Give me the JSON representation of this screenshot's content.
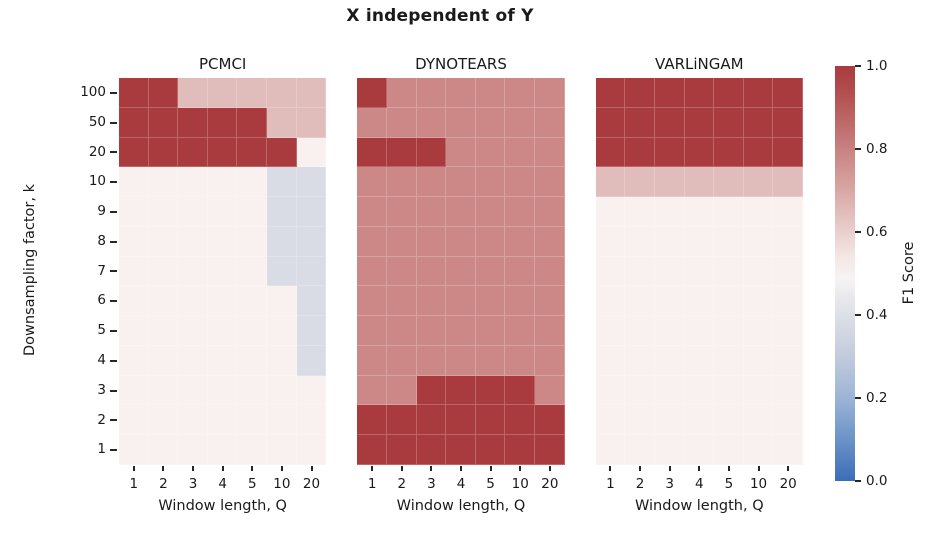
{
  "figure": {
    "title": "X independent of Y"
  },
  "y_axis": {
    "label": "Downsampling factor, k",
    "ticks": [
      "100",
      "50",
      "20",
      "10",
      "9",
      "8",
      "7",
      "6",
      "5",
      "4",
      "3",
      "2",
      "1"
    ]
  },
  "x_axis": {
    "label": "Window length, Q",
    "ticks": [
      "1",
      "2",
      "3",
      "4",
      "5",
      "10",
      "20"
    ]
  },
  "colorbar": {
    "label": "F1 Score",
    "ticks": [
      "1.0",
      "0.8",
      "0.6",
      "0.4",
      "0.2",
      "0.0"
    ],
    "top_color": "#a93b3e",
    "bottom_color": "#3b6db8"
  },
  "palette": {
    "high": "#a93b3e",
    "mid": "#cc8887",
    "pink": "#e0bcba",
    "near_white": "#f9f1f0",
    "blue": "#d9dce4"
  },
  "chart_data": [
    {
      "type": "heatmap",
      "title": "PCMCI",
      "x": [
        1,
        2,
        3,
        4,
        5,
        10,
        20
      ],
      "y": [
        100,
        50,
        20,
        10,
        9,
        8,
        7,
        6,
        5,
        4,
        3,
        2,
        1
      ],
      "xlabel": "Window length, Q",
      "ylabel": "Downsampling factor, k",
      "value_label": "F1 Score",
      "value_range": [
        0.0,
        1.0
      ],
      "values_f1": [
        [
          0.97,
          0.97,
          0.66,
          0.66,
          0.66,
          0.66,
          0.66
        ],
        [
          0.97,
          0.97,
          0.97,
          0.97,
          0.97,
          0.66,
          0.66
        ],
        [
          0.97,
          0.97,
          0.97,
          0.97,
          0.97,
          0.97,
          0.55
        ],
        [
          0.55,
          0.55,
          0.55,
          0.55,
          0.55,
          0.45,
          0.45
        ],
        [
          0.55,
          0.55,
          0.55,
          0.55,
          0.55,
          0.45,
          0.45
        ],
        [
          0.55,
          0.55,
          0.55,
          0.55,
          0.55,
          0.45,
          0.45
        ],
        [
          0.55,
          0.55,
          0.55,
          0.55,
          0.55,
          0.45,
          0.45
        ],
        [
          0.55,
          0.55,
          0.55,
          0.55,
          0.55,
          0.55,
          0.45
        ],
        [
          0.55,
          0.55,
          0.55,
          0.55,
          0.55,
          0.55,
          0.45
        ],
        [
          0.55,
          0.55,
          0.55,
          0.55,
          0.55,
          0.55,
          0.45
        ],
        [
          0.55,
          0.55,
          0.55,
          0.55,
          0.55,
          0.55,
          0.55
        ],
        [
          0.55,
          0.55,
          0.55,
          0.55,
          0.55,
          0.55,
          0.55
        ],
        [
          0.55,
          0.55,
          0.55,
          0.55,
          0.55,
          0.55,
          0.55
        ]
      ]
    },
    {
      "type": "heatmap",
      "title": "DYNOTEARS",
      "x": [
        1,
        2,
        3,
        4,
        5,
        10,
        20
      ],
      "y": [
        100,
        50,
        20,
        10,
        9,
        8,
        7,
        6,
        5,
        4,
        3,
        2,
        1
      ],
      "xlabel": "Window length, Q",
      "ylabel": "Downsampling factor, k",
      "value_label": "F1 Score",
      "value_range": [
        0.0,
        1.0
      ],
      "values_f1": [
        [
          0.97,
          0.78,
          0.78,
          0.78,
          0.78,
          0.78,
          0.78
        ],
        [
          0.78,
          0.78,
          0.78,
          0.78,
          0.78,
          0.78,
          0.78
        ],
        [
          0.97,
          0.97,
          0.97,
          0.78,
          0.78,
          0.78,
          0.78
        ],
        [
          0.78,
          0.78,
          0.78,
          0.78,
          0.78,
          0.78,
          0.78
        ],
        [
          0.78,
          0.78,
          0.78,
          0.78,
          0.78,
          0.78,
          0.78
        ],
        [
          0.78,
          0.78,
          0.78,
          0.78,
          0.78,
          0.78,
          0.78
        ],
        [
          0.78,
          0.78,
          0.78,
          0.78,
          0.78,
          0.78,
          0.78
        ],
        [
          0.78,
          0.78,
          0.78,
          0.78,
          0.78,
          0.78,
          0.78
        ],
        [
          0.78,
          0.78,
          0.78,
          0.78,
          0.78,
          0.78,
          0.78
        ],
        [
          0.78,
          0.78,
          0.78,
          0.78,
          0.78,
          0.78,
          0.78
        ],
        [
          0.78,
          0.78,
          0.97,
          0.97,
          0.97,
          0.97,
          0.78
        ],
        [
          0.97,
          0.97,
          0.97,
          0.97,
          0.97,
          0.97,
          0.97
        ],
        [
          0.97,
          0.97,
          0.97,
          0.97,
          0.97,
          0.97,
          0.97
        ]
      ]
    },
    {
      "type": "heatmap",
      "title": "VARLiNGAM",
      "x": [
        1,
        2,
        3,
        4,
        5,
        10,
        20
      ],
      "y": [
        100,
        50,
        20,
        10,
        9,
        8,
        7,
        6,
        5,
        4,
        3,
        2,
        1
      ],
      "xlabel": "Window length, Q",
      "ylabel": "Downsampling factor, k",
      "value_label": "F1 Score",
      "value_range": [
        0.0,
        1.0
      ],
      "values_f1": [
        [
          0.97,
          0.97,
          0.97,
          0.97,
          0.97,
          0.97,
          0.97
        ],
        [
          0.97,
          0.97,
          0.97,
          0.97,
          0.97,
          0.97,
          0.97
        ],
        [
          0.97,
          0.97,
          0.97,
          0.97,
          0.97,
          0.97,
          0.97
        ],
        [
          0.66,
          0.66,
          0.66,
          0.66,
          0.66,
          0.66,
          0.66
        ],
        [
          0.55,
          0.55,
          0.55,
          0.55,
          0.55,
          0.55,
          0.55
        ],
        [
          0.55,
          0.55,
          0.55,
          0.55,
          0.55,
          0.55,
          0.55
        ],
        [
          0.55,
          0.55,
          0.55,
          0.55,
          0.55,
          0.55,
          0.55
        ],
        [
          0.55,
          0.55,
          0.55,
          0.55,
          0.55,
          0.55,
          0.55
        ],
        [
          0.55,
          0.55,
          0.55,
          0.55,
          0.55,
          0.55,
          0.55
        ],
        [
          0.55,
          0.55,
          0.55,
          0.55,
          0.55,
          0.55,
          0.55
        ],
        [
          0.55,
          0.55,
          0.55,
          0.55,
          0.55,
          0.55,
          0.55
        ],
        [
          0.55,
          0.55,
          0.55,
          0.55,
          0.55,
          0.55,
          0.55
        ],
        [
          0.55,
          0.55,
          0.55,
          0.55,
          0.55,
          0.55,
          0.55
        ]
      ]
    }
  ]
}
